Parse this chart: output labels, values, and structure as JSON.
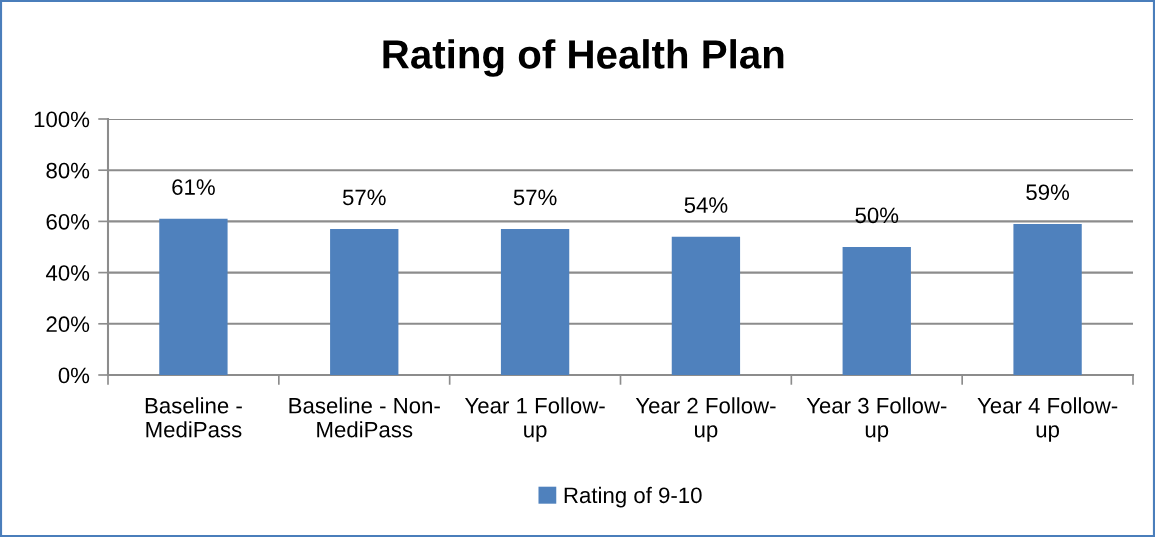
{
  "chart_data": {
    "type": "bar",
    "title": "Rating of Health Plan",
    "categories": [
      "Baseline - MediPass",
      "Baseline - Non-MediPass",
      "Year 1 Follow-up",
      "Year 2 Follow-up",
      "Year 3 Follow-up",
      "Year 4 Follow-up"
    ],
    "series": [
      {
        "name": "Rating of 9-10",
        "color": "#4f81bd",
        "values": [
          61,
          57,
          57,
          54,
          50,
          59
        ],
        "value_labels": [
          "61%",
          "57%",
          "57%",
          "54%",
          "50%",
          "59%"
        ]
      }
    ],
    "ylim": [
      0,
      100
    ],
    "yticks": [
      {
        "value": 0,
        "label": "0%"
      },
      {
        "value": 20,
        "label": "20%"
      },
      {
        "value": 40,
        "label": "40%"
      },
      {
        "value": 60,
        "label": "60%"
      },
      {
        "value": 80,
        "label": "80%"
      },
      {
        "value": 100,
        "label": "100%"
      }
    ],
    "grid": "y",
    "legend": "bottom"
  }
}
